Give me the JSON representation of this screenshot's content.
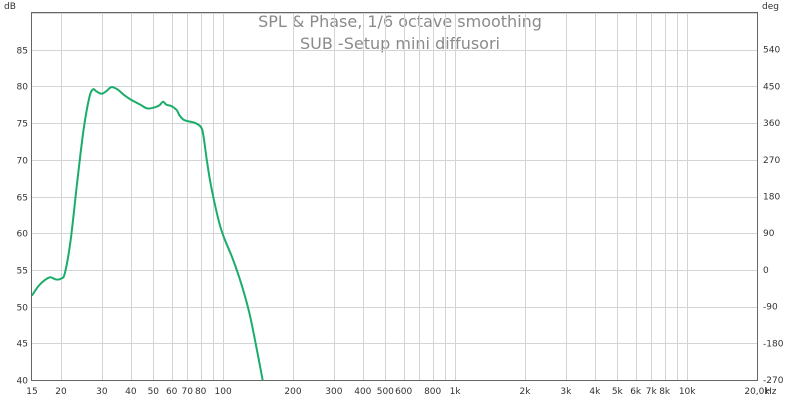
{
  "chart_data": {
    "type": "line",
    "title": "SPL & Phase, 1/6 octave smoothing",
    "subtitle": "SUB -Setup mini diffusori",
    "y_unit_left": "dB",
    "y_unit_right": "deg",
    "x_scale": "log",
    "xlim": [
      15,
      20000
    ],
    "ylim": [
      40,
      90
    ],
    "y2lim": [
      -270,
      630
    ],
    "grid": true,
    "x_ticks": [
      {
        "value": 15,
        "label": "15"
      },
      {
        "value": 20,
        "label": "20"
      },
      {
        "value": 30,
        "label": "30"
      },
      {
        "value": 40,
        "label": "40"
      },
      {
        "value": 50,
        "label": "50"
      },
      {
        "value": 60,
        "label": "60"
      },
      {
        "value": 70,
        "label": "70"
      },
      {
        "value": 80,
        "label": "80"
      },
      {
        "value": 100,
        "label": "100"
      },
      {
        "value": 200,
        "label": "200"
      },
      {
        "value": 300,
        "label": "300"
      },
      {
        "value": 400,
        "label": "400"
      },
      {
        "value": 500,
        "label": "500"
      },
      {
        "value": 600,
        "label": "600"
      },
      {
        "value": 800,
        "label": "800"
      },
      {
        "value": 1000,
        "label": "1k"
      },
      {
        "value": 2000,
        "label": "2k"
      },
      {
        "value": 3000,
        "label": "3k"
      },
      {
        "value": 4000,
        "label": "4k"
      },
      {
        "value": 5000,
        "label": "5k"
      },
      {
        "value": 6000,
        "label": "6k"
      },
      {
        "value": 7000,
        "label": "7k"
      },
      {
        "value": 8000,
        "label": "8k"
      },
      {
        "value": 10000,
        "label": "10k"
      },
      {
        "value": 20000,
        "label": "20,0k"
      }
    ],
    "x_unit": "Hz",
    "y_ticks": [
      {
        "value": 40,
        "label": "40"
      },
      {
        "value": 45,
        "label": "45"
      },
      {
        "value": 50,
        "label": "50"
      },
      {
        "value": 55,
        "label": "55"
      },
      {
        "value": 60,
        "label": "60"
      },
      {
        "value": 65,
        "label": "65"
      },
      {
        "value": 70,
        "label": "70"
      },
      {
        "value": 75,
        "label": "75"
      },
      {
        "value": 80,
        "label": "80"
      },
      {
        "value": 85,
        "label": "85"
      }
    ],
    "y2_ticks": [
      {
        "value": -270,
        "label": "-270"
      },
      {
        "value": -180,
        "label": "-180"
      },
      {
        "value": -90,
        "label": "-90"
      },
      {
        "value": 0,
        "label": "0"
      },
      {
        "value": 90,
        "label": "90"
      },
      {
        "value": 180,
        "label": "180"
      },
      {
        "value": 270,
        "label": "270"
      },
      {
        "value": 360,
        "label": "360"
      },
      {
        "value": 450,
        "label": "450"
      },
      {
        "value": 540,
        "label": "540"
      }
    ],
    "series": [
      {
        "color": "#1aad6a",
        "points": [
          [
            15,
            51.5
          ],
          [
            16,
            52.8
          ],
          [
            17,
            53.6
          ],
          [
            18,
            54.0
          ],
          [
            19,
            53.7
          ],
          [
            20,
            53.8
          ],
          [
            20.8,
            54.6
          ],
          [
            22,
            59
          ],
          [
            23.5,
            67
          ],
          [
            25,
            74
          ],
          [
            26.5,
            78.5
          ],
          [
            27.5,
            79.6
          ],
          [
            28.5,
            79.3
          ],
          [
            30,
            79.0
          ],
          [
            31.5,
            79.4
          ],
          [
            33,
            79.9
          ],
          [
            35,
            79.6
          ],
          [
            37.5,
            78.8
          ],
          [
            40,
            78.2
          ],
          [
            44,
            77.5
          ],
          [
            47,
            77.0
          ],
          [
            50,
            77.1
          ],
          [
            53,
            77.4
          ],
          [
            55,
            77.9
          ],
          [
            57,
            77.5
          ],
          [
            60,
            77.3
          ],
          [
            63,
            76.8
          ],
          [
            65,
            76.0
          ],
          [
            68,
            75.4
          ],
          [
            72,
            75.2
          ],
          [
            76,
            75.0
          ],
          [
            80,
            74.5
          ],
          [
            82,
            73.5
          ],
          [
            85,
            70
          ],
          [
            88,
            67
          ],
          [
            92,
            64
          ],
          [
            97,
            61
          ],
          [
            102,
            59
          ],
          [
            110,
            56.5
          ],
          [
            120,
            53
          ],
          [
            130,
            49
          ],
          [
            140,
            44
          ],
          [
            148,
            40
          ]
        ]
      }
    ]
  }
}
